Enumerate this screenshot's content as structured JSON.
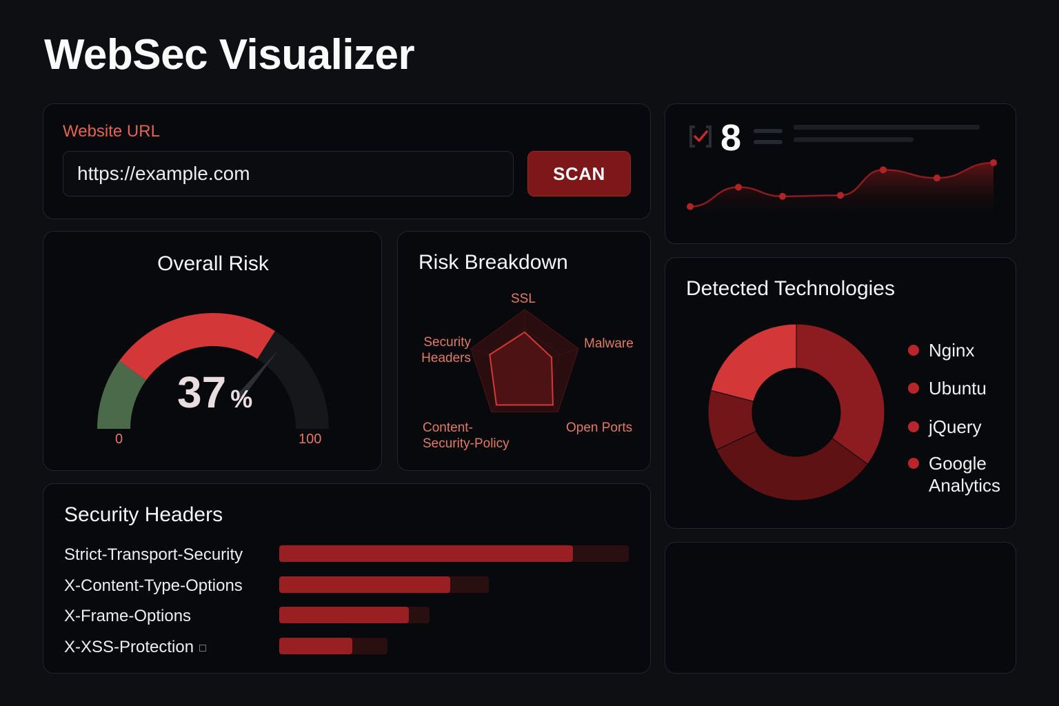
{
  "app": {
    "title": "WebSec Visualizer"
  },
  "scan": {
    "label": "Website URL",
    "url_value": "https://example.com",
    "button_label": "SCAN"
  },
  "summary": {
    "count": "8",
    "trend_values": [
      0.1,
      0.48,
      0.3,
      0.32,
      0.82,
      0.66,
      0.96
    ]
  },
  "risk": {
    "title": "Overall Risk",
    "value": 37,
    "value_number": "37",
    "unit": "%",
    "min_label": "0",
    "max_label": "100"
  },
  "breakdown": {
    "title": "Risk Breakdown",
    "labels": {
      "ssl": "SSL",
      "malware": "Malware",
      "open_ports": "Open Ports",
      "csp_line1": "Content-",
      "csp_line2": "Security-Policy",
      "headers_line1": "Security",
      "headers_line2": "Headers"
    },
    "values": [
      0.6,
      0.5,
      0.85,
      0.85,
      0.65
    ]
  },
  "technologies": {
    "title": "Detected Technologies",
    "items": [
      {
        "name": "Nginx",
        "share": 0.35
      },
      {
        "name": "Ubuntu",
        "share": 0.33
      },
      {
        "name": "jQuery",
        "share": 0.11
      },
      {
        "name": "Google Analytics",
        "share": 0.21
      }
    ],
    "slice_colors": [
      "#8c1c20",
      "#5e1214",
      "#721619",
      "#d43737"
    ]
  },
  "headers": {
    "title": "Security Headers",
    "rows": [
      {
        "name": "Strict-Transport-Security",
        "value": 0.84,
        "track": 1.0
      },
      {
        "name": "X-Content-Type-Options",
        "value": 0.49,
        "track": 0.6
      },
      {
        "name": "X-Frame-Options",
        "value": 0.37,
        "track": 0.43
      },
      {
        "name": "X-XSS-Protection",
        "value": 0.21,
        "track": 0.31
      }
    ]
  },
  "colors": {
    "accent": "#7d171a",
    "accent_bright": "#d43737",
    "label": "#e2654d",
    "gauge_green": "#4a6a4a"
  }
}
